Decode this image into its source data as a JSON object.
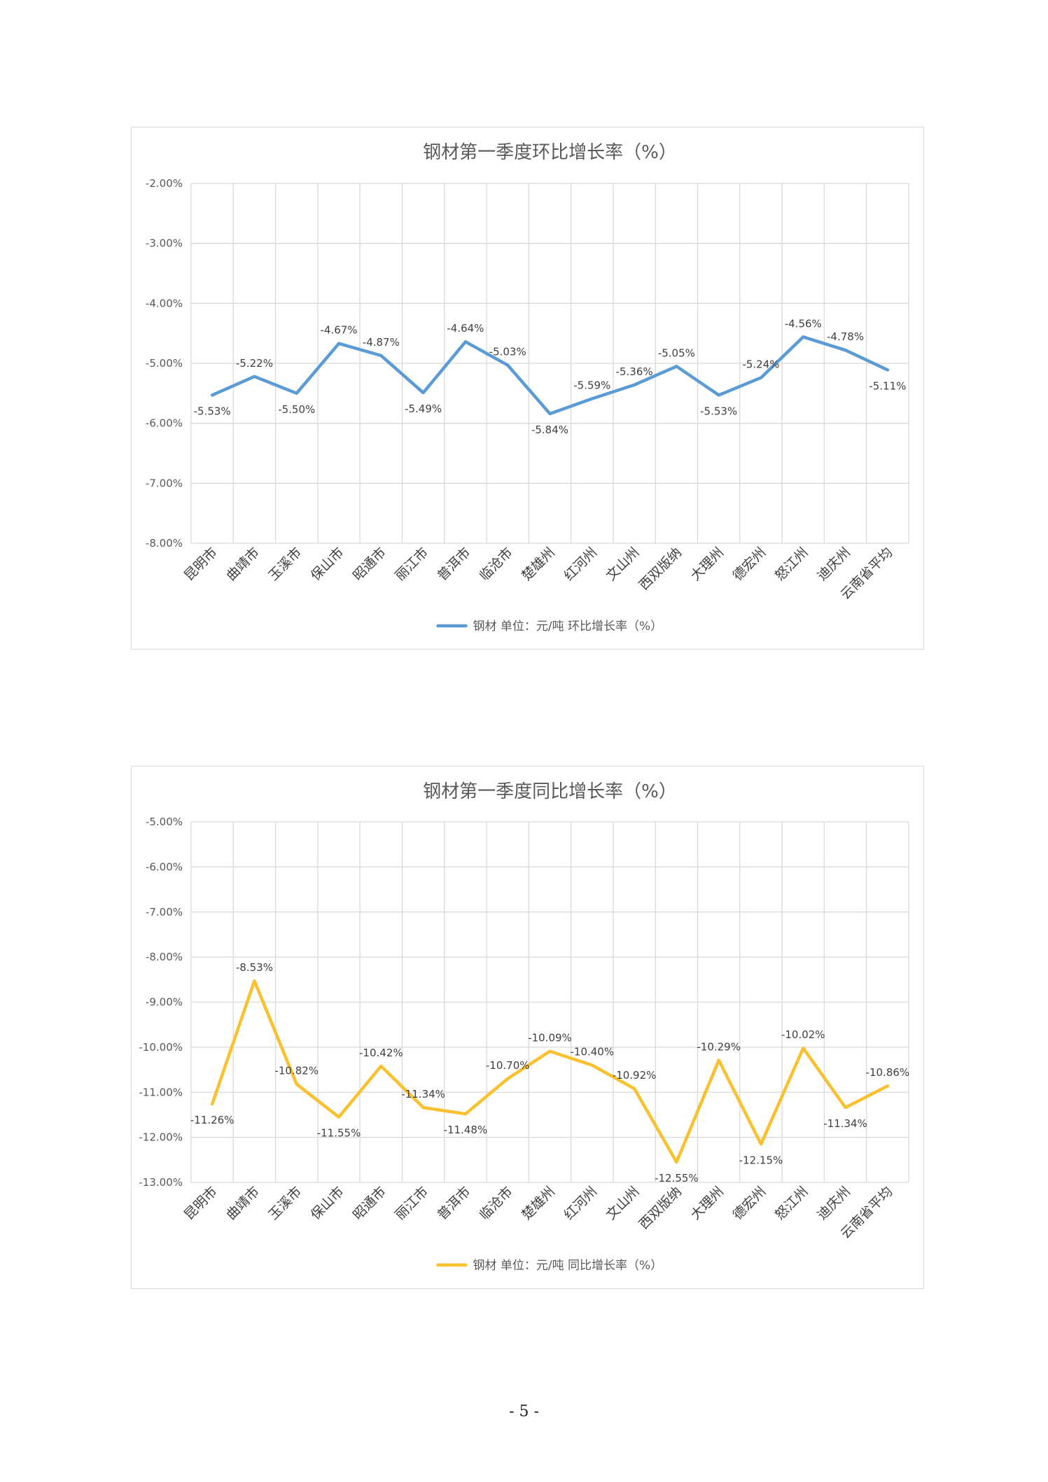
{
  "page_number": "- 5 -",
  "colors": {
    "series1": "#5b9bd5",
    "series2": "#fbc02d",
    "grid": "#d9d9d9",
    "text": "#595959"
  },
  "chart_data": [
    {
      "type": "line",
      "title": "钢材第一季度环比增长率（%）",
      "categories": [
        "昆明市",
        "曲靖市",
        "玉溪市",
        "保山市",
        "昭通市",
        "丽江市",
        "普洱市",
        "临沧市",
        "楚雄州",
        "红河州",
        "文山州",
        "西双版纳",
        "大理州",
        "德宏州",
        "怒江州",
        "迪庆州",
        "云南省平均"
      ],
      "series": [
        {
          "name": "钢材 单位：元/吨 环比增长率（%）",
          "values": [
            -5.53,
            -5.22,
            -5.5,
            -4.67,
            -4.87,
            -5.49,
            -4.64,
            -5.03,
            -5.84,
            -5.59,
            -5.36,
            -5.05,
            -5.53,
            -5.24,
            -4.56,
            -4.78,
            -5.11
          ],
          "data_labels": [
            "-5.53%",
            "-5.22%",
            "-5.50%",
            "-4.67%",
            "-4.87%",
            "-5.49%",
            "-4.64%",
            "-5.03%",
            "-5.84%",
            "-5.59%",
            "-5.36%",
            "-5.05%",
            "-5.53%",
            "-5.24%",
            "-4.56%",
            "-4.78%",
            "-5.11%"
          ]
        }
      ],
      "ylim": [
        -8,
        -2
      ],
      "yticks": [
        -2,
        -3,
        -4,
        -5,
        -6,
        -7,
        -8
      ],
      "ytick_labels": [
        "-2.00%",
        "-3.00%",
        "-4.00%",
        "-5.00%",
        "-6.00%",
        "-7.00%",
        "-8.00%"
      ],
      "grid": true,
      "legend": "bottom"
    },
    {
      "type": "line",
      "title": "钢材第一季度同比增长率（%）",
      "categories": [
        "昆明市",
        "曲靖市",
        "玉溪市",
        "保山市",
        "昭通市",
        "丽江市",
        "普洱市",
        "临沧市",
        "楚雄州",
        "红河州",
        "文山州",
        "西双版纳",
        "大理州",
        "德宏州",
        "怒江州",
        "迪庆州",
        "云南省平均"
      ],
      "series": [
        {
          "name": "钢材 单位：元/吨 同比增长率（%）",
          "values": [
            -11.26,
            -8.53,
            -10.82,
            -11.55,
            -10.42,
            -11.34,
            -11.48,
            -10.7,
            -10.09,
            -10.4,
            -10.92,
            -12.55,
            -10.29,
            -12.15,
            -10.02,
            -11.34,
            -10.86
          ],
          "data_labels": [
            "-11.26%",
            "-8.53%",
            "-10.82%",
            "-11.55%",
            "-10.42%",
            "-11.34%",
            "-11.48%",
            "-10.70%",
            "-10.09%",
            "-10.40%",
            "-10.92%",
            "-12.55%",
            "-10.29%",
            "-12.15%",
            "-10.02%",
            "-11.34%",
            "-10.86%"
          ]
        }
      ],
      "ylim": [
        -13,
        -5
      ],
      "yticks": [
        -5,
        -6,
        -7,
        -8,
        -9,
        -10,
        -11,
        -12,
        -13
      ],
      "ytick_labels": [
        "-5.00%",
        "-6.00%",
        "-7.00%",
        "-8.00%",
        "-9.00%",
        "-10.00%",
        "-11.00%",
        "-12.00%",
        "-13.00%"
      ],
      "grid": true,
      "legend": "bottom"
    }
  ]
}
